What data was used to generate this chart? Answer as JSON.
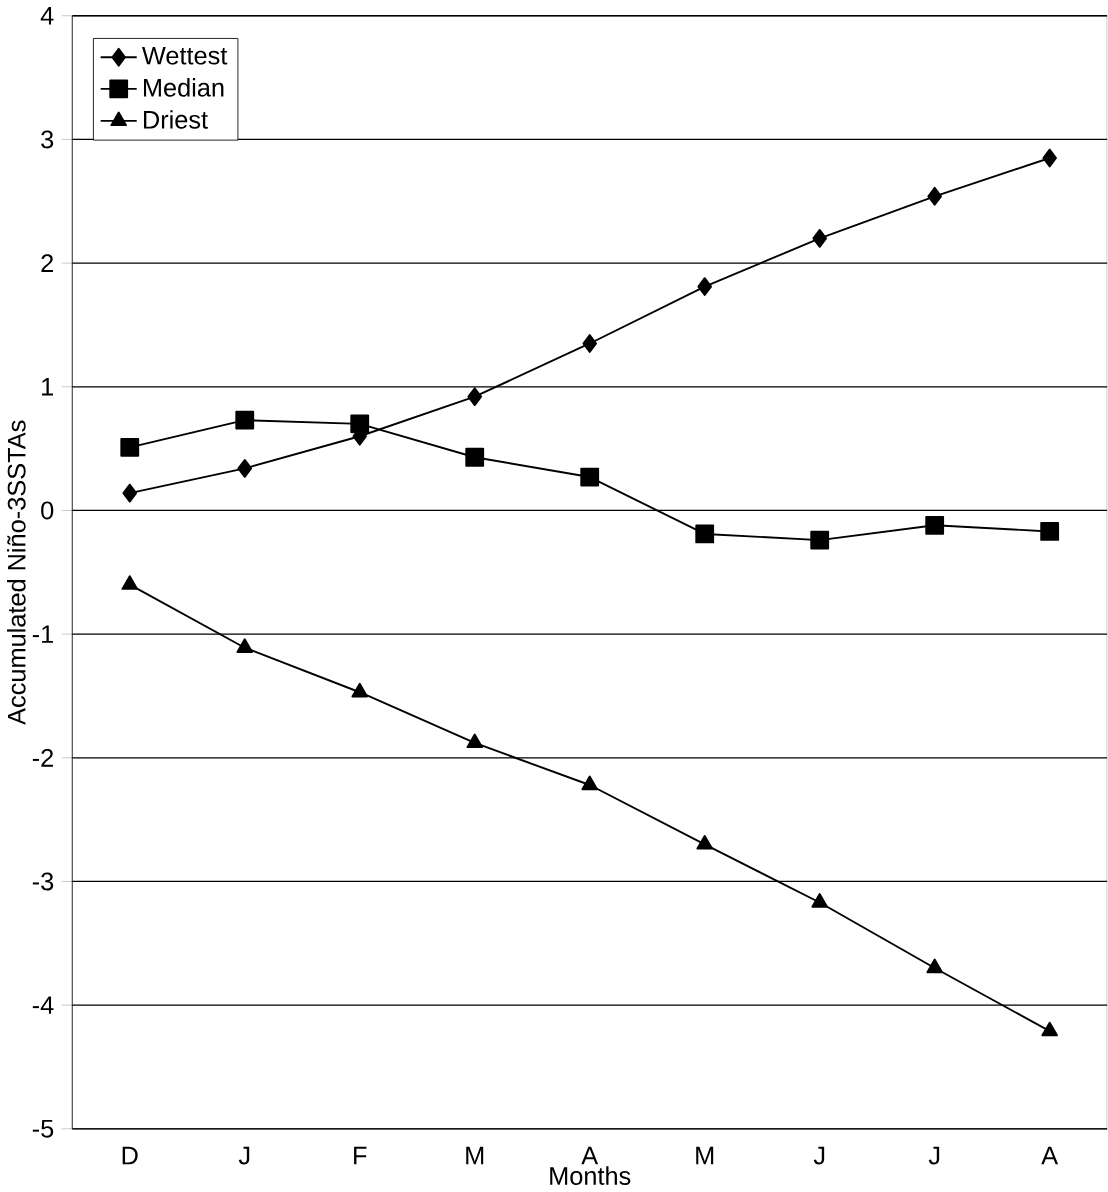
{
  "chart_data": {
    "type": "line",
    "xlabel": "Months",
    "ylabel": "Accumulated Niño-3SSTAs",
    "categories": [
      "D",
      "J",
      "F",
      "M",
      "A",
      "M",
      "J",
      "J",
      "A"
    ],
    "series": [
      {
        "name": "Wettest",
        "color": "#000000",
        "marker": "diamond",
        "values": [
          0.14,
          0.34,
          0.6,
          0.92,
          1.35,
          1.81,
          2.2,
          2.54,
          2.85
        ]
      },
      {
        "name": "Median",
        "color": "#000000",
        "marker": "square",
        "values": [
          0.51,
          0.73,
          0.7,
          0.43,
          0.27,
          -0.19,
          -0.24,
          -0.12,
          -0.17
        ]
      },
      {
        "name": "Driest",
        "color": "#000000",
        "marker": "triangle",
        "values": [
          -0.6,
          -1.11,
          -1.47,
          -1.88,
          -2.22,
          -2.7,
          -3.17,
          -3.7,
          -4.21
        ]
      }
    ],
    "ylim": [
      -5,
      4
    ],
    "yticks": [
      -5,
      -4,
      -3,
      -2,
      -1,
      0,
      1,
      2,
      3,
      4
    ],
    "grid": "y",
    "legend": "top left",
    "line_style": "solid"
  }
}
